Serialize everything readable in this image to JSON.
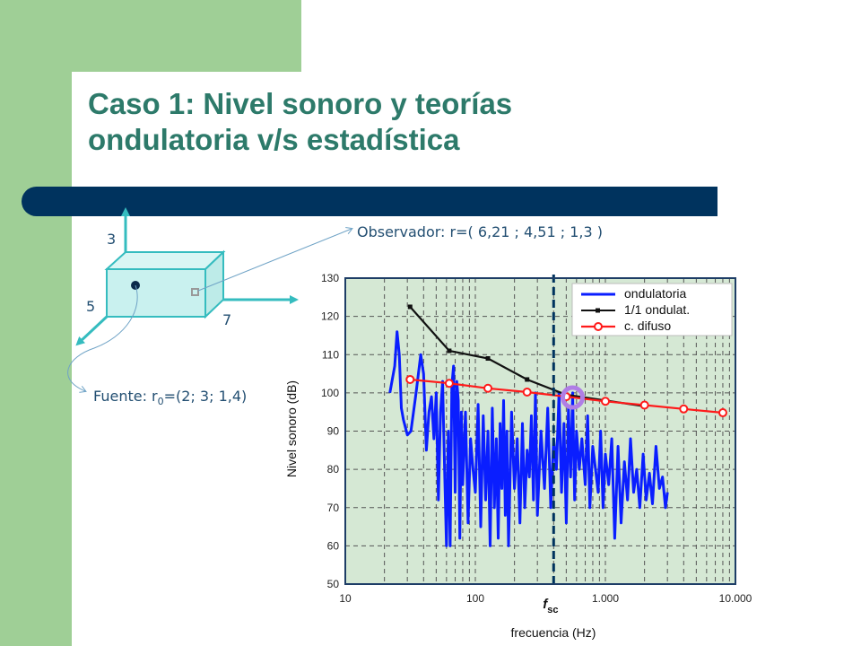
{
  "slide": {
    "title_line1": "Caso 1: Nivel sonoro y teorías",
    "title_line2": "ondulatoria v/s estadística"
  },
  "room": {
    "axis_labels": {
      "z": "3",
      "x": "7",
      "y": "5"
    },
    "observer_text": "Observador: r=( 6,21 ; 4,51 ; 1,3 )",
    "source_prefix": "Fuente: r",
    "source_sub": "0",
    "source_suffix": "=(2; 3; 1,4)"
  },
  "colors": {
    "background_green": "#9fcf96",
    "band_navy": "#00335e",
    "title_teal": "#2d7a6a",
    "room_fill": "#c9f1ef",
    "room_edge": "#35bcbf",
    "plot_bg": "#d5e8d4",
    "series_wave": "#0a1eff",
    "series_octave": "#111111",
    "series_diffuse": "#ff1a1a",
    "marker_circle": "#b07ee6"
  },
  "chart_data": {
    "type": "line",
    "xscale": "log",
    "xlim": [
      10,
      10000
    ],
    "ylim": [
      50,
      130
    ],
    "xticks": [
      10,
      100,
      1000,
      10000
    ],
    "xtick_labels": [
      "10",
      "100",
      "1.000",
      "10.000"
    ],
    "yticks": [
      50,
      60,
      70,
      80,
      90,
      100,
      110,
      120,
      130
    ],
    "ytick_labels": [
      "50",
      "60",
      "70",
      "80",
      "90",
      "100",
      "110",
      "120",
      "130"
    ],
    "xlabel": "frecuencia (Hz)",
    "ylabel": "Nivel sonoro (dB)",
    "grid": true,
    "legend": "top-right",
    "annotation": {
      "text": "f",
      "sub": "sc",
      "x": 400
    },
    "highlight_x": 560,
    "series": [
      {
        "name": "ondulatoria",
        "style": "line",
        "x": [
          22,
          24,
          25,
          26,
          27,
          28,
          30,
          32,
          35,
          38,
          40,
          42,
          44,
          46,
          48,
          50,
          52,
          54,
          56,
          58,
          60,
          62,
          64,
          66,
          68,
          70,
          72,
          74,
          76,
          78,
          80,
          84,
          88,
          92,
          96,
          100,
          105,
          110,
          115,
          120,
          125,
          130,
          135,
          140,
          145,
          150,
          155,
          160,
          165,
          170,
          175,
          180,
          190,
          200,
          210,
          220,
          230,
          240,
          250,
          260,
          270,
          280,
          290,
          300,
          320,
          340,
          360,
          380,
          400,
          420,
          440,
          460,
          480,
          500,
          520,
          540,
          560,
          580,
          600,
          630,
          660,
          700,
          730,
          760,
          800,
          840,
          880,
          920,
          960,
          1000,
          1060,
          1120,
          1180,
          1250,
          1320,
          1400,
          1480,
          1560,
          1650,
          1740,
          1840,
          1950,
          2060,
          2180,
          2300,
          2450,
          2600,
          2750,
          2900,
          3000
        ],
        "values": [
          100,
          107,
          116,
          110,
          96,
          93,
          89,
          90,
          100,
          110,
          105,
          85,
          95,
          99,
          88,
          100,
          72,
          95,
          103,
          80,
          60,
          90,
          60,
          102,
          107,
          74,
          103,
          98,
          62,
          95,
          76,
          95,
          66,
          88,
          80,
          74,
          97,
          65,
          94,
          72,
          90,
          60,
          96,
          70,
          88,
          62,
          92,
          75,
          98,
          68,
          90,
          60,
          95,
          75,
          88,
          66,
          92,
          70,
          85,
          78,
          94,
          72,
          100,
          68,
          90,
          75,
          96,
          70,
          88,
          80,
          100,
          74,
          92,
          66,
          96,
          78,
          100,
          72,
          90,
          80,
          88,
          76,
          94,
          70,
          86,
          80,
          74,
          90,
          70,
          84,
          76,
          88,
          62,
          86,
          66,
          82,
          72,
          88,
          74,
          80,
          70,
          84,
          72,
          79,
          71,
          86,
          75,
          78,
          70,
          74
        ]
      },
      {
        "name": "1/1 ondulat.",
        "style": "line-dots",
        "x": [
          31.5,
          63,
          125,
          250,
          500,
          1000,
          2000
        ],
        "values": [
          122.5,
          111,
          109,
          103.5,
          99.5,
          98,
          96.5
        ]
      },
      {
        "name": "c. difuso",
        "style": "line-circles",
        "x": [
          31.5,
          63,
          125,
          250,
          500,
          1000,
          2000,
          4000,
          8000
        ],
        "values": [
          103.5,
          102.5,
          101.2,
          100.2,
          99,
          97.8,
          96.8,
          95.8,
          94.8
        ]
      }
    ]
  }
}
